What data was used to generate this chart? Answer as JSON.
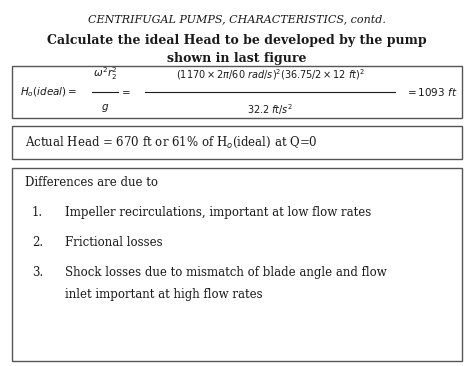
{
  "title1": "CENTRIFUGAL PUMPS, CHARACTERISTICS, contd.",
  "title2_line1": "Calculate the ideal Head to be developed by the pump",
  "title2_line2": "shown in last figure",
  "box2_text": "Actual Head = 670 ft or 61% of H",
  "box2_sub": "o",
  "box2_rest": "(ideal) at Q=0",
  "box3_title": "Differences are due to",
  "item1": "Impeller recirculations, important at low flow rates",
  "item2": "Frictional losses",
  "item3a": "Shock losses due to mismatch of blade angle and flow",
  "item3b": "inlet important at high flow rates",
  "bg_color": "#ffffff",
  "text_color": "#1a1a1a",
  "box_edgecolor": "#555555",
  "formula_num": "(1170×2π/60 rad/s)²(36.75/2×12 ft)²",
  "formula_den": "32.2 ft/s²",
  "formula_left": "H₀(ideal) = ",
  "formula_frac1_num": "ω²r₂²",
  "formula_frac1_den": "g",
  "formula_result": "= 1093 ft"
}
